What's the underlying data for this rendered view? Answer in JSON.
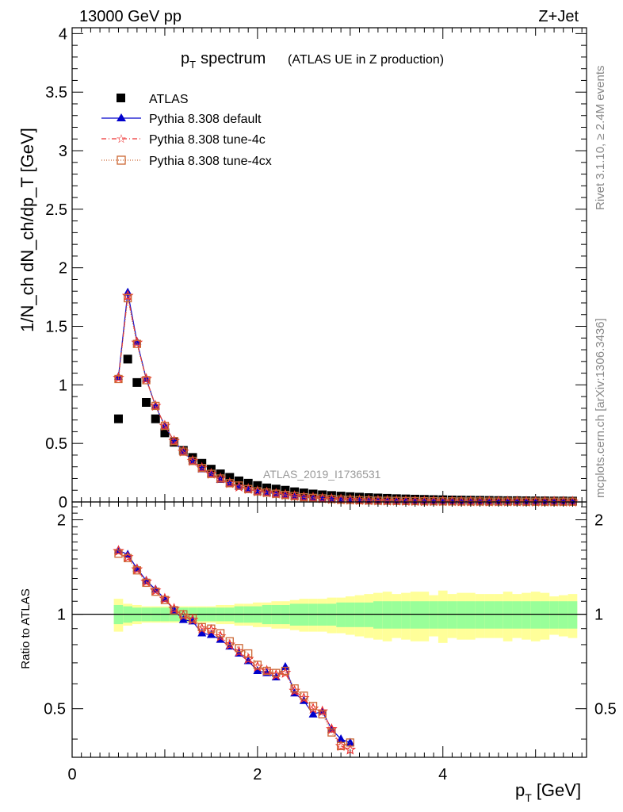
{
  "header": {
    "left": "13000 GeV pp",
    "right": "Z+Jet"
  },
  "side_text": {
    "rivet": "Rivet 3.1.10, ≥ 2.4M events",
    "mcplots": "mcplots.cern.ch [arXiv:1306.3436]"
  },
  "analysis_label": "ATLAS_2019_I1736531",
  "colors": {
    "default": "#0000cc",
    "tune4c": "#ee3333",
    "tune4cx": "#cc6633",
    "band_inner": "#99ff99",
    "band_outer": "#ffff99"
  },
  "chart_data": [
    {
      "type": "line",
      "title": "p_T spectrum",
      "title_main": "p",
      "title_sub": "T",
      "title_word": "spectrum",
      "subtitle": "(ATLAS UE in Z production)",
      "ylabel": "1/N_ch dN_ch/dp_T [GeV]",
      "xlim": [
        0,
        5.55
      ],
      "ylim": [
        0,
        4.05
      ],
      "yticks": [
        0,
        0.5,
        1,
        1.5,
        2,
        2.5,
        3,
        3.5,
        4
      ],
      "ytick_labels": [
        "0",
        "0.5",
        "1",
        "1.5",
        "2",
        "2.5",
        "3",
        "3.5",
        "4"
      ],
      "legend_placement": "top-left",
      "x": [
        0.5,
        0.6,
        0.7,
        0.8,
        0.9,
        1.0,
        1.1,
        1.2,
        1.3,
        1.4,
        1.5,
        1.6,
        1.7,
        1.8,
        1.9,
        2.0,
        2.1,
        2.2,
        2.3,
        2.4,
        2.5,
        2.6,
        2.7,
        2.8,
        2.9,
        3.0,
        3.1,
        3.2,
        3.3,
        3.4,
        3.5,
        3.6,
        3.7,
        3.8,
        3.9,
        4.0,
        4.1,
        4.2,
        4.3,
        4.4,
        4.5,
        4.6,
        4.7,
        4.8,
        4.9,
        5.0,
        5.1,
        5.2,
        5.3,
        5.4
      ],
      "series": [
        {
          "name": "ATLAS",
          "values": [
            0.71,
            1.22,
            1.02,
            0.85,
            0.71,
            0.59,
            0.51,
            0.44,
            0.38,
            0.33,
            0.28,
            0.24,
            0.21,
            0.18,
            0.16,
            0.14,
            0.12,
            0.11,
            0.1,
            0.087,
            0.077,
            0.068,
            0.061,
            0.055,
            0.05,
            0.045,
            0.041,
            0.037,
            0.034,
            0.031,
            0.028,
            0.026,
            0.024,
            0.022,
            0.02,
            0.019,
            0.017,
            0.016,
            0.015,
            0.014,
            0.013,
            0.012,
            0.011,
            0.011,
            0.01,
            0.009,
            0.009,
            0.008,
            0.008,
            0.007
          ]
        },
        {
          "name": "Pythia 8.308 default",
          "values": [
            1.07,
            1.79,
            1.37,
            1.05,
            0.82,
            0.65,
            0.52,
            0.43,
            0.35,
            0.28,
            0.24,
            0.19,
            0.16,
            0.13,
            0.11,
            0.09,
            0.08,
            0.07,
            0.06,
            0.05,
            0.04,
            0.035,
            0.03,
            0.025,
            0.02,
            0.018,
            0.015,
            0.013,
            0.011,
            0.01,
            0.009,
            0.008,
            0.007,
            0.006,
            0.006,
            0.005,
            0.005,
            0.004,
            0.004,
            0.004,
            0.003,
            0.003,
            0.003,
            0.003,
            0.002,
            0.002,
            0.002,
            0.002,
            0.002,
            0.002
          ]
        },
        {
          "name": "Pythia 8.308 tune-4c",
          "values": [
            1.06,
            1.76,
            1.36,
            1.05,
            0.82,
            0.65,
            0.52,
            0.43,
            0.35,
            0.29,
            0.24,
            0.2,
            0.16,
            0.13,
            0.11,
            0.09,
            0.08,
            0.07,
            0.06,
            0.05,
            0.04,
            0.035,
            0.03,
            0.025,
            0.02,
            0.018,
            0.015,
            0.013,
            0.011,
            0.01,
            0.009,
            0.008,
            0.007,
            0.006,
            0.006,
            0.005,
            0.005,
            0.004,
            0.004,
            0.004,
            0.003,
            0.003,
            0.003,
            0.003,
            0.002,
            0.002,
            0.002,
            0.002,
            0.002,
            0.002
          ]
        },
        {
          "name": "Pythia 8.308 tune-4cx",
          "values": [
            1.05,
            1.74,
            1.35,
            1.04,
            0.82,
            0.65,
            0.52,
            0.43,
            0.35,
            0.29,
            0.24,
            0.2,
            0.16,
            0.14,
            0.11,
            0.09,
            0.08,
            0.07,
            0.06,
            0.05,
            0.04,
            0.035,
            0.03,
            0.025,
            0.02,
            0.018,
            0.015,
            0.013,
            0.011,
            0.01,
            0.009,
            0.008,
            0.007,
            0.006,
            0.006,
            0.005,
            0.005,
            0.004,
            0.004,
            0.004,
            0.003,
            0.003,
            0.003,
            0.003,
            0.002,
            0.002,
            0.002,
            0.002,
            0.002,
            0.002
          ]
        }
      ]
    },
    {
      "type": "line",
      "ylabel": "Ratio to ATLAS",
      "xlabel": "p_T [GeV]",
      "xlabel_main": "p",
      "xlabel_sub": "T",
      "xlabel_unit": "[GeV]",
      "xlim": [
        0,
        5.55
      ],
      "ylim": [
        0.35,
        2.28
      ],
      "log_scale_y": true,
      "xticks": [
        0,
        2,
        4
      ],
      "xtick_labels": [
        "0",
        "2",
        "4"
      ],
      "yticks": [
        0.5,
        1,
        2
      ],
      "ytick_labels": [
        "0.5",
        "1",
        "2"
      ],
      "reference_line": 1,
      "x": [
        0.5,
        0.6,
        0.7,
        0.8,
        0.9,
        1.0,
        1.1,
        1.2,
        1.3,
        1.4,
        1.5,
        1.6,
        1.7,
        1.8,
        1.9,
        2.0,
        2.1,
        2.2,
        2.3,
        2.4,
        2.5,
        2.6,
        2.7,
        2.8,
        2.9,
        3.0
      ],
      "series": [
        {
          "name": "Pythia 8.308 default",
          "values": [
            1.6,
            1.55,
            1.4,
            1.28,
            1.2,
            1.12,
            1.03,
            0.96,
            0.95,
            0.87,
            0.86,
            0.83,
            0.79,
            0.75,
            0.71,
            0.66,
            0.65,
            0.63,
            0.68,
            0.56,
            0.53,
            0.48,
            0.49,
            0.43,
            0.4,
            0.39
          ]
        },
        {
          "name": "Pythia 8.308 tune-4c",
          "values": [
            1.59,
            1.52,
            1.39,
            1.27,
            1.19,
            1.12,
            1.04,
            0.99,
            0.96,
            0.9,
            0.89,
            0.85,
            0.8,
            0.76,
            0.72,
            0.68,
            0.66,
            0.64,
            0.65,
            0.57,
            0.54,
            0.5,
            0.49,
            0.43,
            0.38,
            0.37
          ]
        },
        {
          "name": "Pythia 8.308 tune-4cx",
          "values": [
            1.56,
            1.51,
            1.38,
            1.26,
            1.18,
            1.11,
            1.03,
            1.0,
            0.97,
            0.91,
            0.9,
            0.87,
            0.82,
            0.78,
            0.75,
            0.69,
            0.66,
            0.65,
            0.66,
            0.58,
            0.55,
            0.51,
            0.48,
            0.42,
            0.38,
            0.39
          ]
        }
      ],
      "band_inner": [
        0.07,
        0.06,
        0.05,
        0.05,
        0.05,
        0.05,
        0.05,
        0.05,
        0.05,
        0.05,
        0.05,
        0.05,
        0.05,
        0.06,
        0.06,
        0.06,
        0.07,
        0.07,
        0.07,
        0.08,
        0.08,
        0.08,
        0.08,
        0.08,
        0.09,
        0.09,
        0.09,
        0.09,
        0.1,
        0.1,
        0.1,
        0.1,
        0.1,
        0.1,
        0.1,
        0.1,
        0.1,
        0.1,
        0.1,
        0.1,
        0.1,
        0.1,
        0.1,
        0.1,
        0.1,
        0.1,
        0.1,
        0.1,
        0.1,
        0.1
      ],
      "band_outer": [
        0.12,
        0.08,
        0.07,
        0.06,
        0.06,
        0.06,
        0.06,
        0.06,
        0.06,
        0.06,
        0.06,
        0.07,
        0.07,
        0.08,
        0.08,
        0.09,
        0.09,
        0.1,
        0.1,
        0.11,
        0.12,
        0.12,
        0.12,
        0.13,
        0.13,
        0.14,
        0.15,
        0.16,
        0.17,
        0.18,
        0.16,
        0.17,
        0.18,
        0.18,
        0.15,
        0.19,
        0.16,
        0.17,
        0.17,
        0.16,
        0.16,
        0.16,
        0.18,
        0.16,
        0.17,
        0.18,
        0.17,
        0.14,
        0.15,
        0.16
      ]
    }
  ]
}
